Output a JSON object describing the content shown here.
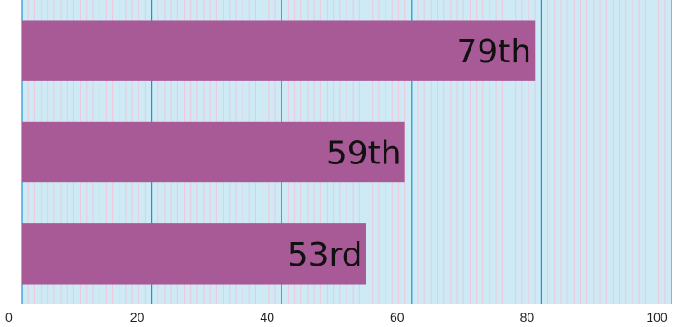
{
  "chart_data": {
    "type": "bar",
    "orientation": "horizontal",
    "categories": [
      "",
      "",
      ""
    ],
    "values": [
      79,
      59,
      53
    ],
    "data_labels": [
      "79th",
      "59th",
      "53rd"
    ],
    "xlim": [
      0,
      100
    ],
    "xticks": [
      "0",
      "20",
      "40",
      "60",
      "80",
      "100"
    ],
    "xlabel": "",
    "ylabel": "",
    "title": "",
    "grid": true,
    "colors": {
      "bar": "#a85a97",
      "background": "#cdeaf5",
      "major_grid": "#1f93cf",
      "minor_grid": "#f1c6dc"
    }
  }
}
